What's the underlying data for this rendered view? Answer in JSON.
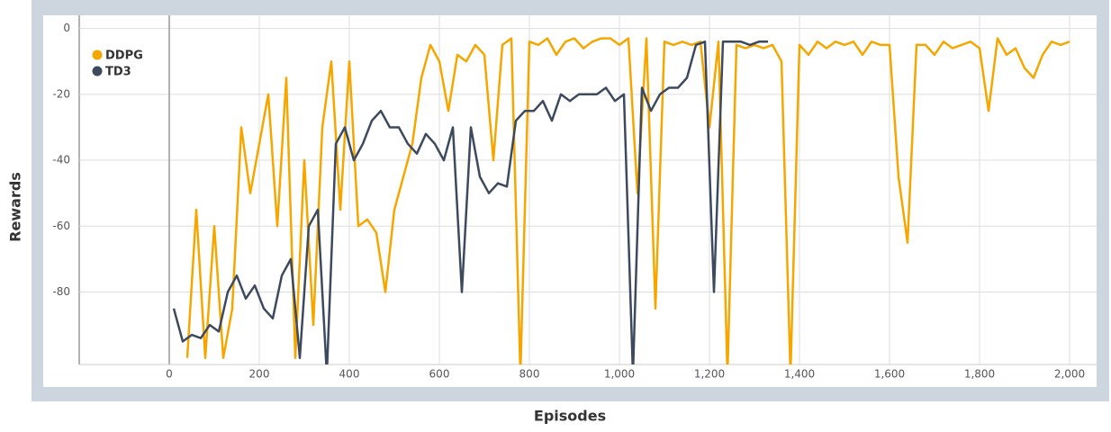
{
  "chart_data": {
    "type": "line",
    "x_label": "Episodes",
    "y_label": "Rewards",
    "xlim": [
      -200,
      2060
    ],
    "ylim": [
      -102,
      4
    ],
    "xticks": [
      0,
      200,
      400,
      600,
      800,
      {
        "value": 1000,
        "label": "1,000"
      },
      {
        "value": 1200,
        "label": "1,200"
      },
      {
        "value": 1400,
        "label": "1,400"
      },
      {
        "value": 1600,
        "label": "1,600"
      },
      {
        "value": 1800,
        "label": "1,800"
      },
      {
        "value": 2000,
        "label": "2,000"
      }
    ],
    "yticks": [
      0,
      -20,
      -40,
      -60,
      -80
    ],
    "grid": true,
    "legend": "top-left",
    "series": [
      {
        "name": "DDPG",
        "color": "#f5a700",
        "x": [
          40,
          60,
          80,
          100,
          120,
          140,
          160,
          180,
          200,
          220,
          240,
          260,
          280,
          300,
          320,
          340,
          360,
          380,
          400,
          420,
          440,
          460,
          480,
          500,
          520,
          540,
          560,
          580,
          600,
          620,
          640,
          660,
          680,
          700,
          720,
          740,
          760,
          780,
          800,
          820,
          840,
          860,
          880,
          900,
          920,
          940,
          960,
          980,
          1000,
          1020,
          1040,
          1060,
          1080,
          1100,
          1120,
          1140,
          1160,
          1180,
          1200,
          1220,
          1240,
          1260,
          1280,
          1300,
          1320,
          1340,
          1360,
          1380,
          1400,
          1420,
          1440,
          1460,
          1480,
          1500,
          1520,
          1540,
          1560,
          1580,
          1600,
          1620,
          1640,
          1660,
          1680,
          1700,
          1720,
          1740,
          1760,
          1780,
          1800,
          1820,
          1840,
          1860,
          1880,
          1900,
          1920,
          1940,
          1960,
          1980,
          2000
        ],
        "values": [
          -100,
          -55,
          -100,
          -60,
          -100,
          -85,
          -30,
          -50,
          -35,
          -20,
          -60,
          -15,
          -100,
          -40,
          -90,
          -30,
          -10,
          -55,
          -10,
          -60,
          -58,
          -62,
          -80,
          -55,
          -45,
          -35,
          -15,
          -5,
          -10,
          -25,
          -8,
          -10,
          -5,
          -8,
          -40,
          -5,
          -3,
          -105,
          -4,
          -5,
          -3,
          -8,
          -4,
          -3,
          -6,
          -4,
          -3,
          -3,
          -5,
          -3,
          -50,
          -3,
          -85,
          -4,
          -5,
          -4,
          -5,
          -4,
          -30,
          -4,
          -105,
          -5,
          -6,
          -5,
          -6,
          -5,
          -10,
          -105,
          -5,
          -8,
          -4,
          -6,
          -4,
          -5,
          -4,
          -8,
          -4,
          -5,
          -5,
          -45,
          -65,
          -5,
          -5,
          -8,
          -4,
          -6,
          -5,
          -4,
          -6,
          -25,
          -3,
          -8,
          -6,
          -12,
          -15,
          -8,
          -4,
          -5,
          -4
        ]
      },
      {
        "name": "TD3",
        "color": "#3d4a5e",
        "x": [
          10,
          30,
          50,
          70,
          90,
          110,
          130,
          150,
          170,
          190,
          210,
          230,
          250,
          270,
          290,
          310,
          330,
          350,
          370,
          390,
          410,
          430,
          450,
          470,
          490,
          510,
          530,
          550,
          570,
          590,
          610,
          630,
          650,
          670,
          690,
          710,
          730,
          750,
          770,
          790,
          810,
          830,
          850,
          870,
          890,
          910,
          930,
          950,
          970,
          990,
          1010,
          1030,
          1050,
          1070,
          1090,
          1110,
          1130,
          1150,
          1170,
          1190,
          1210,
          1230,
          1250,
          1270,
          1290,
          1310,
          1330
        ],
        "values": [
          -85,
          -95,
          -93,
          -94,
          -90,
          -92,
          -80,
          -75,
          -82,
          -78,
          -85,
          -88,
          -75,
          -70,
          -100,
          -60,
          -55,
          -105,
          -35,
          -30,
          -40,
          -35,
          -28,
          -25,
          -30,
          -30,
          -35,
          -38,
          -32,
          -35,
          -40,
          -30,
          -80,
          -30,
          -45,
          -50,
          -47,
          -48,
          -28,
          -25,
          -25,
          -22,
          -28,
          -20,
          -22,
          -20,
          -20,
          -20,
          -18,
          -22,
          -20,
          -105,
          -18,
          -25,
          -20,
          -18,
          -18,
          -15,
          -5,
          -4,
          -80,
          -4,
          -4,
          -4,
          -5,
          -4,
          -4
        ]
      }
    ]
  }
}
